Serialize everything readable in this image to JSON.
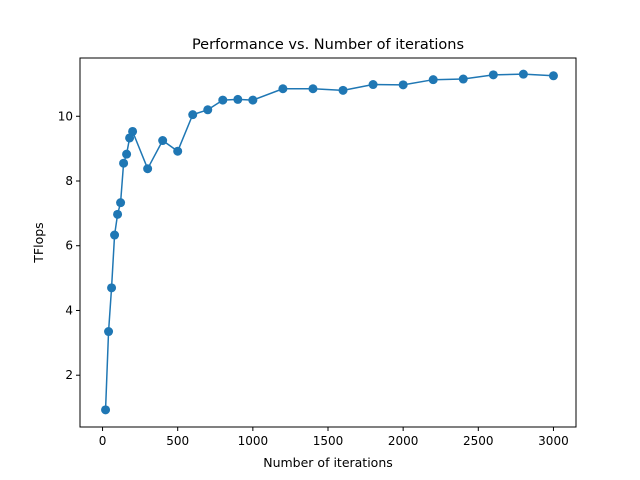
{
  "chart_data": {
    "type": "line",
    "title": "Performance vs. Number of iterations",
    "xlabel": "Number of iterations",
    "ylabel": "TFlops",
    "xlim": [
      -150,
      3150
    ],
    "ylim": [
      0.4,
      11.8
    ],
    "xticks": [
      0,
      500,
      1000,
      1500,
      2000,
      2500,
      3000
    ],
    "yticks": [
      2,
      4,
      6,
      8,
      10
    ],
    "grid": false,
    "colors": {
      "series": "#1f77b4",
      "axes": "#000000",
      "background": "#ffffff"
    },
    "series": [
      {
        "marker": "circle",
        "x": [
          20,
          40,
          60,
          80,
          100,
          120,
          140,
          160,
          180,
          200,
          300,
          400,
          500,
          600,
          700,
          800,
          900,
          1000,
          1200,
          1400,
          1600,
          1800,
          2000,
          2200,
          2400,
          2600,
          2800,
          3000
        ],
        "y": [
          0.93,
          3.35,
          4.7,
          6.33,
          6.97,
          7.33,
          8.55,
          8.83,
          9.33,
          9.53,
          8.38,
          9.25,
          8.92,
          10.05,
          10.2,
          10.5,
          10.52,
          10.5,
          10.85,
          10.85,
          10.8,
          10.98,
          10.97,
          11.13,
          11.15,
          11.28,
          11.3,
          11.25
        ]
      }
    ]
  }
}
